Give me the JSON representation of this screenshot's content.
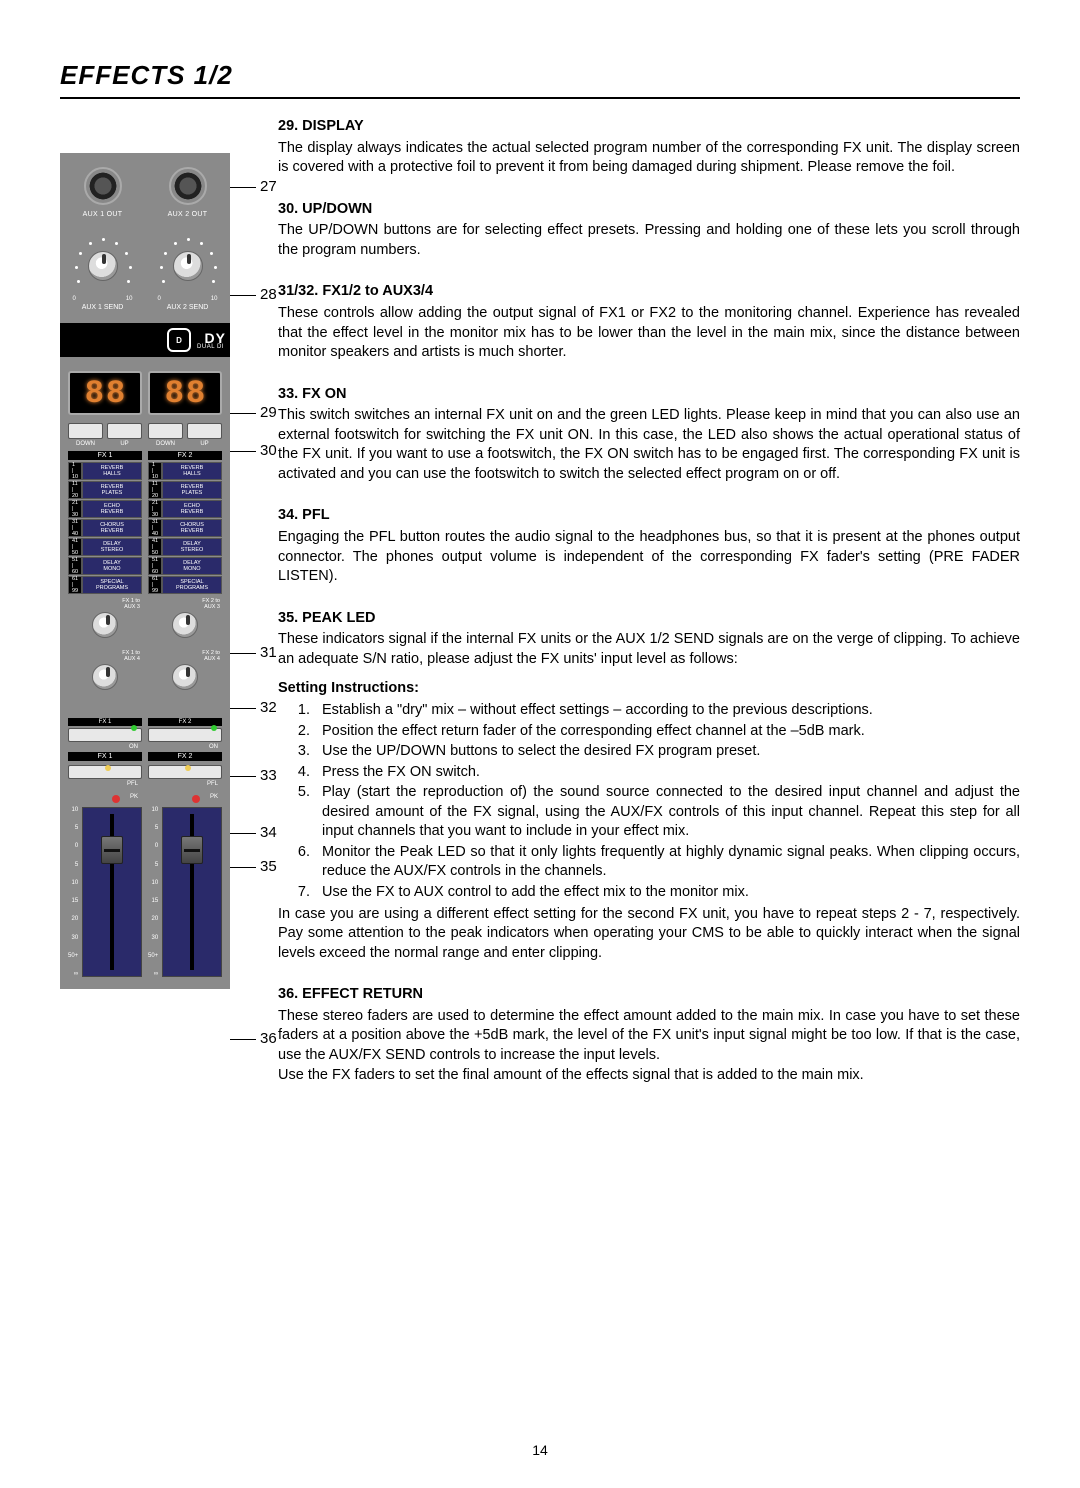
{
  "page": {
    "title": "EFFECTS 1/2",
    "number": "14"
  },
  "panel": {
    "color_bg": "#8a8a8a",
    "color_navy": "#2a2a6a",
    "color_led_green": "#33cc33",
    "color_led_yellow": "#eecc55",
    "color_led_red": "#dd3333",
    "color_seg7": "#e08030",
    "aux_out": {
      "left": "AUX 1 OUT",
      "right": "AUX 2 OUT"
    },
    "aux_send": {
      "left": "AUX 1 SEND",
      "right": "AUX 2 SEND",
      "scale_lo": "0",
      "scale_hi": "10"
    },
    "brand": {
      "logo": "D",
      "text": "DY",
      "sub": "DUAL DI"
    },
    "display": {
      "digit": "8"
    },
    "updown": {
      "down": "DOWN",
      "up": "UP"
    },
    "fx_headers": {
      "fx1": "FX 1",
      "fx2": "FX 2"
    },
    "presets": [
      {
        "range": "1\n|\n10",
        "name": "REVERB\nHALLS"
      },
      {
        "range": "11\n|\n20",
        "name": "REVERB\nPLATES"
      },
      {
        "range": "21\n|\n30",
        "name": "ECHO\nREVERB"
      },
      {
        "range": "31\n|\n40",
        "name": "CHORUS\nREVERB"
      },
      {
        "range": "41\n|\n50",
        "name": "DELAY\nSTEREO"
      },
      {
        "range": "51\n|\n60",
        "name": "DELAY\nMONO"
      },
      {
        "range": "61\n|\n99",
        "name": "SPECIAL\nPROGRAMS"
      }
    ],
    "aux_knobs": {
      "fx1_aux3": "FX 1 to\nAUX 3",
      "fx2_aux3": "FX 2 to\nAUX 3",
      "fx1_aux4": "FX 1 to\nAUX 4",
      "fx2_aux4": "FX 2 to\nAUX 4",
      "scale_lo": "0",
      "scale_hi": "10"
    },
    "on_btn": {
      "label": "ON"
    },
    "pfl_btn": {
      "label": "PFL"
    },
    "pk": {
      "label": "PK"
    },
    "fader_scale": [
      "10",
      "5",
      "0",
      "5",
      "10",
      "15",
      "20",
      "30",
      "50+",
      "∞"
    ]
  },
  "callouts": {
    "c27": "27",
    "c28": "28",
    "c29": "29",
    "c30": "30",
    "c31": "31",
    "c32": "32",
    "c33": "33",
    "c34": "34",
    "c35": "35",
    "c36": "36"
  },
  "sections": {
    "s29": {
      "h": "29. DISPLAY",
      "p": "The display always indicates the actual selected program number of the corresponding FX unit. The display screen is covered with a protective foil to prevent it from being damaged during shipment. Please remove the foil."
    },
    "s30": {
      "h": "30. UP/DOWN",
      "p": "The UP/DOWN buttons are for selecting effect presets. Pressing and holding one of these lets you scroll through the program numbers."
    },
    "s31": {
      "h": "31/32. FX1/2 to AUX3/4",
      "p": "These controls allow adding the output signal of FX1 or FX2 to the monitoring channel. Experience has revealed that the effect level in the monitor mix has to be lower than the level in the main mix, since the distance between monitor speakers and artists is much shorter."
    },
    "s33": {
      "h": "33. FX ON",
      "p": "This switch switches an internal FX unit on and the green LED lights. Please keep in mind that you can also use an external footswitch for switching the FX unit ON. In this case, the LED also shows the actual operational status of the FX unit. If you want to use a footswitch, the FX ON switch has to be engaged first. The corresponding FX unit is activated and you can use the footswitch to switch the selected effect program on or off."
    },
    "s34": {
      "h": "34. PFL",
      "p": "Engaging the PFL button routes the audio signal to the headphones bus, so that it is present at the phones output connector. The phones output volume is independent of the corresponding FX fader's setting (PRE FADER LISTEN)."
    },
    "s35": {
      "h": "35. PEAK LED",
      "p": "These indicators signal if the internal FX units or the AUX 1/2 SEND signals are on the verge of clipping. To achieve an adequate S/N ratio, please adjust the FX units' input level as follows:"
    },
    "setting": {
      "h": "Setting Instructions:",
      "items": [
        "Establish a \"dry\" mix – without effect settings – according to the previous descriptions.",
        "Position the effect return fader of the corresponding effect channel at the –5dB mark.",
        "Use the UP/DOWN buttons to select the desired FX program preset.",
        "Press the FX ON switch.",
        "Play (start the reproduction of) the sound source connected to the desired input channel and adjust the desired amount of the FX signal, using the AUX/FX controls of this input channel. Repeat this step for all input channels that you want to include in your effect mix.",
        "Monitor the Peak LED so that it only lights frequently at highly dynamic signal peaks. When clipping occurs, reduce the AUX/FX controls in the channels.",
        "Use the FX to AUX control to add the effect mix to the monitor mix."
      ],
      "tail": "In case you are using a different effect setting for the second FX unit, you have to repeat steps 2 - 7, respectively. Pay some attention to the peak indicators when operating your CMS to be able to quickly interact when the signal levels exceed the normal range and enter clipping."
    },
    "s36": {
      "h": "36. EFFECT RETURN",
      "p1": "These stereo faders are used to determine the effect amount added to the main mix. In case you have to set these faders at a position above the +5dB mark, the level of the FX unit's input signal might be too low. If that is the case, use the AUX/FX SEND controls to increase the input levels.",
      "p2": "Use the FX faders to set the final amount of the effects signal that is added to the main mix."
    }
  }
}
